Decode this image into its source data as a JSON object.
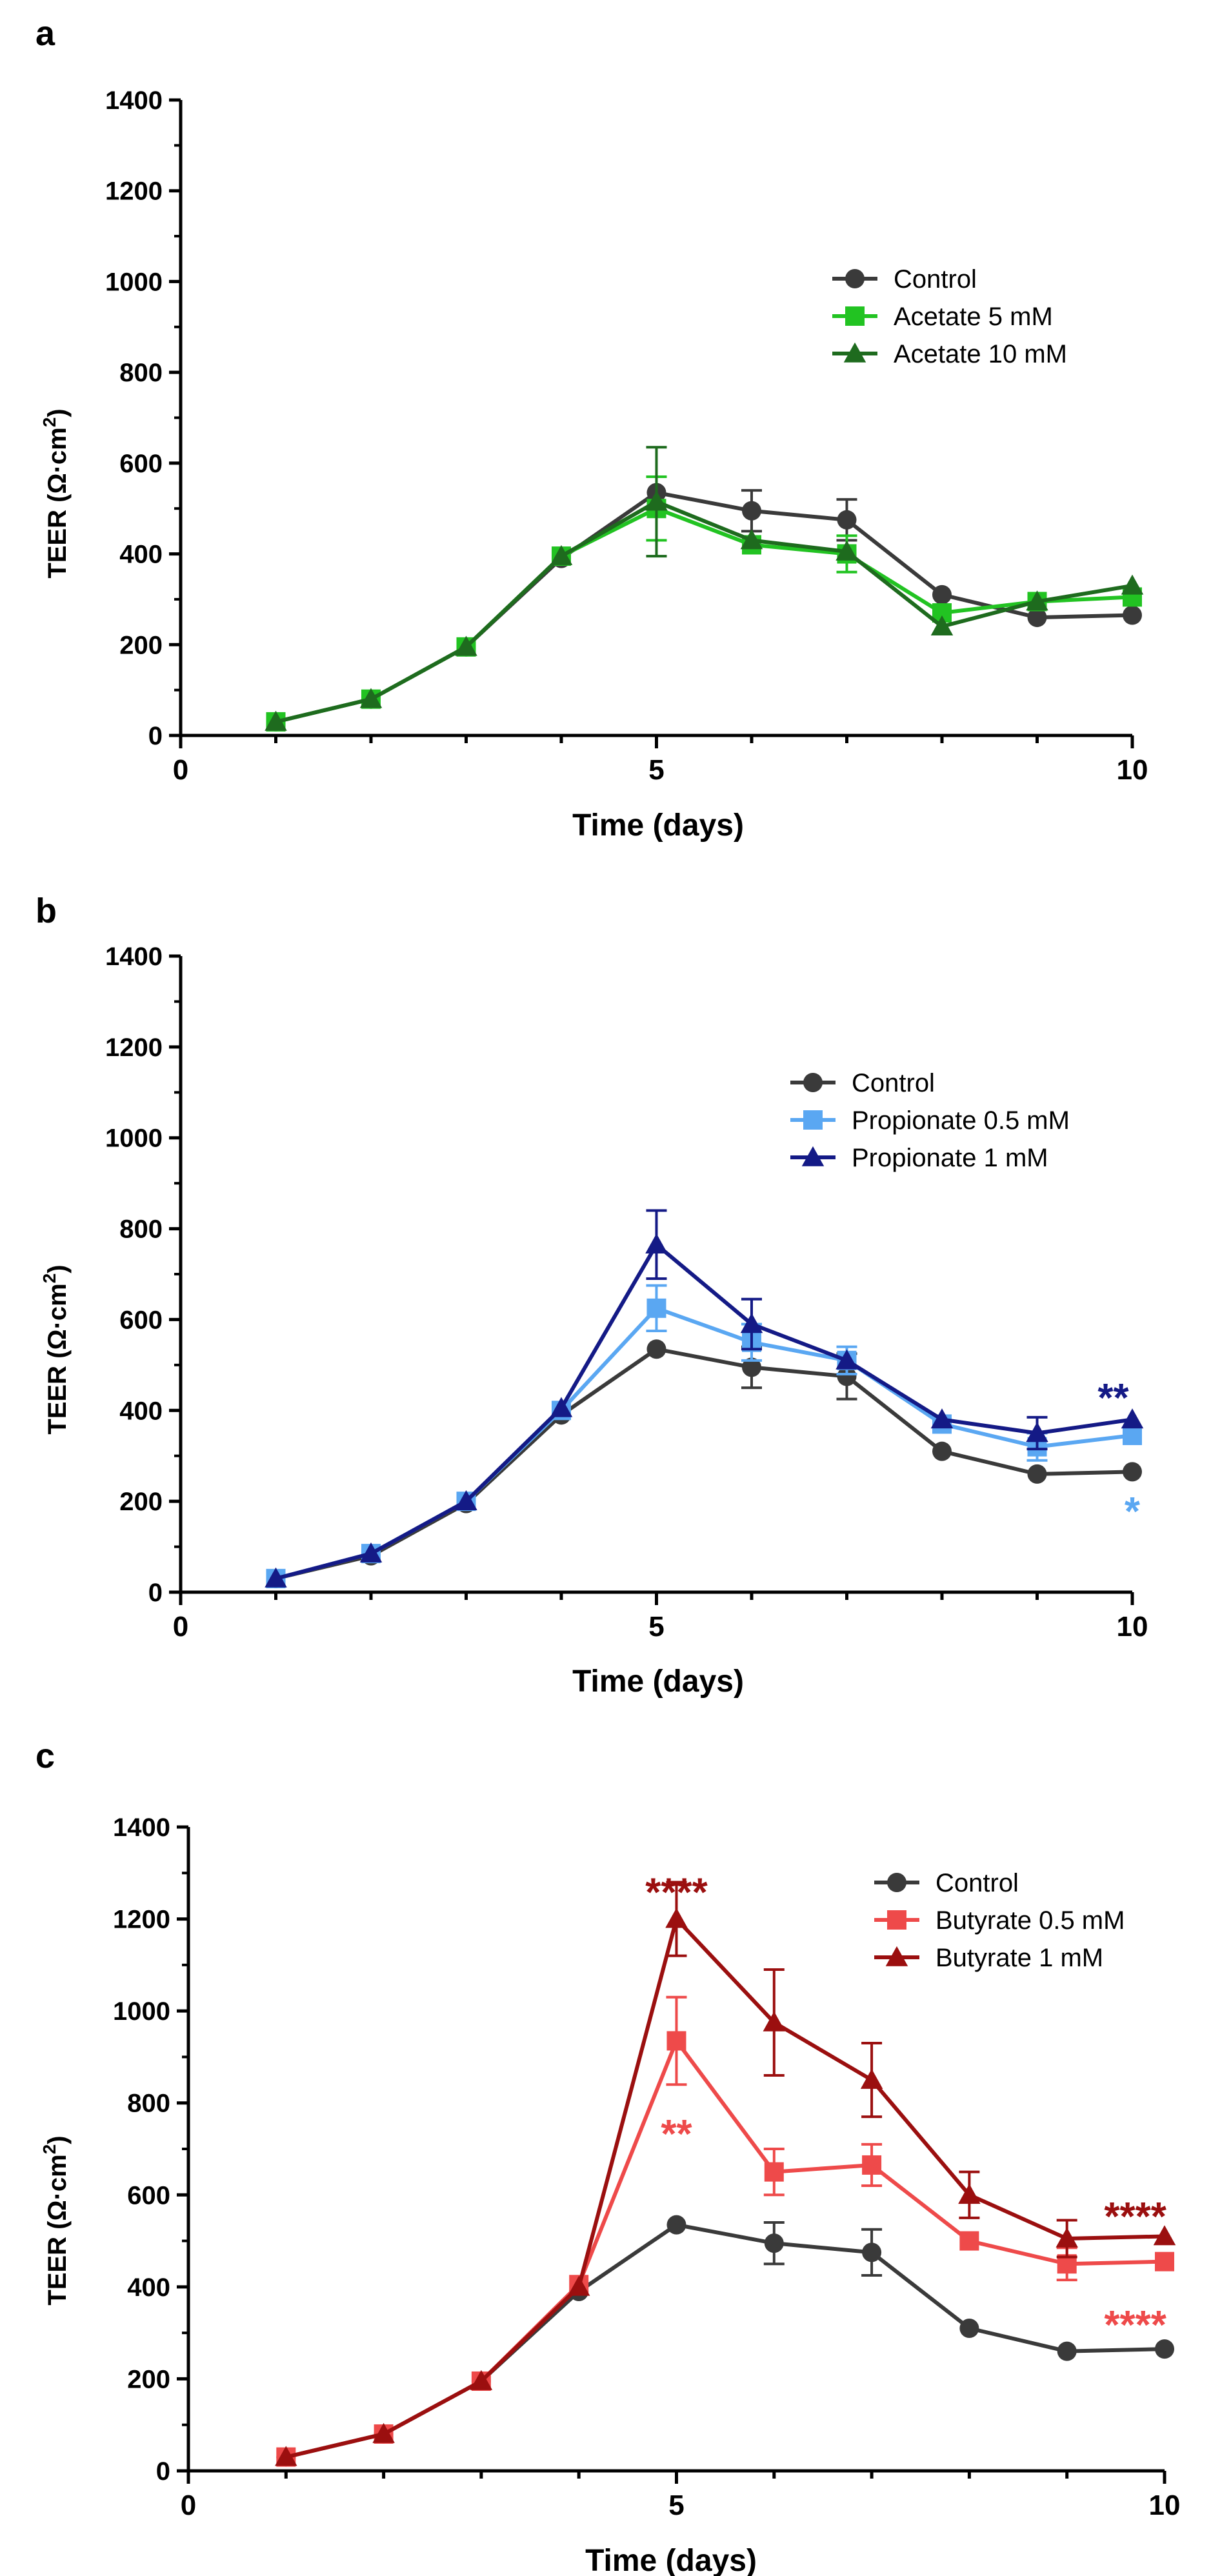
{
  "figure": {
    "colors": {
      "axis": "#000000",
      "control": "#3a3a3a"
    },
    "panels": [
      {
        "letter": "a",
        "ylabel_main": "TEER (Ω·cm",
        "ylabel_sup": "2",
        "ylabel_close": ")"
      },
      {
        "letter": "b",
        "ylabel_main": "TEER (Ω·cm",
        "ylabel_sup": "2",
        "ylabel_close": ")"
      },
      {
        "letter": "c",
        "ylabel_main": "TEER (Ω·cm",
        "ylabel_sup": "2",
        "ylabel_close": ")"
      }
    ]
  },
  "chart_data": [
    {
      "type": "line",
      "panel": "a",
      "xlabel": "Time (days)",
      "ylabel": "TEER (Ω·cm²)",
      "xlim": [
        0,
        10
      ],
      "ylim": [
        0,
        1400
      ],
      "xticks": [
        0,
        5,
        10
      ],
      "yticks": [
        0,
        200,
        400,
        600,
        800,
        1000,
        1200,
        1400
      ],
      "x": [
        1,
        2,
        3,
        4,
        5,
        6,
        7,
        8,
        9,
        10
      ],
      "legend_position": "top-right",
      "series": [
        {
          "name": "Control",
          "color": "#3a3a3a",
          "marker": "circle",
          "values": [
            30,
            80,
            195,
            390,
            535,
            495,
            475,
            310,
            260,
            265
          ],
          "errors": [
            0,
            0,
            0,
            0,
            0,
            45,
            45,
            0,
            0,
            0
          ]
        },
        {
          "name": "Acetate 5 mM",
          "color": "#22c322",
          "marker": "square",
          "values": [
            30,
            80,
            195,
            395,
            500,
            420,
            400,
            270,
            295,
            305
          ],
          "errors": [
            0,
            0,
            0,
            0,
            70,
            0,
            40,
            0,
            0,
            0
          ]
        },
        {
          "name": "Acetate 10 mM",
          "color": "#1e6b1e",
          "marker": "triangle",
          "values": [
            30,
            80,
            195,
            395,
            515,
            430,
            405,
            240,
            295,
            330
          ],
          "errors": [
            0,
            0,
            0,
            0,
            120,
            0,
            0,
            0,
            0,
            0
          ]
        }
      ],
      "annotations": []
    },
    {
      "type": "line",
      "panel": "b",
      "xlabel": "Time (days)",
      "ylabel": "TEER (Ω·cm²)",
      "xlim": [
        0,
        10
      ],
      "ylim": [
        0,
        1400
      ],
      "xticks": [
        0,
        5,
        10
      ],
      "yticks": [
        0,
        200,
        400,
        600,
        800,
        1000,
        1200,
        1400
      ],
      "x": [
        1,
        2,
        3,
        4,
        5,
        6,
        7,
        8,
        9,
        10
      ],
      "legend_position": "top-right",
      "series": [
        {
          "name": "Control",
          "color": "#3a3a3a",
          "marker": "circle",
          "values": [
            30,
            80,
            195,
            390,
            535,
            495,
            475,
            310,
            260,
            265
          ],
          "errors": [
            0,
            0,
            0,
            0,
            0,
            45,
            50,
            0,
            0,
            0
          ]
        },
        {
          "name": "Propionate 0.5 mM",
          "color": "#5aa7f2",
          "marker": "square",
          "values": [
            30,
            85,
            200,
            400,
            625,
            550,
            510,
            370,
            320,
            345
          ],
          "errors": [
            0,
            0,
            0,
            0,
            50,
            40,
            30,
            0,
            30,
            0
          ]
        },
        {
          "name": "Propionate 1 mM",
          "color": "#141a86",
          "marker": "triangle",
          "values": [
            30,
            85,
            200,
            405,
            765,
            590,
            510,
            380,
            350,
            380
          ],
          "errors": [
            0,
            0,
            0,
            0,
            75,
            55,
            0,
            0,
            35,
            0
          ]
        }
      ],
      "annotations": [
        {
          "text": "**",
          "x": 9.8,
          "y": 440,
          "color": "#141a86"
        },
        {
          "text": "*",
          "x": 10.0,
          "y": 190,
          "color": "#5aa7f2"
        }
      ]
    },
    {
      "type": "line",
      "panel": "c",
      "xlabel": "Time (days)",
      "ylabel": "TEER (Ω·cm²)",
      "xlim": [
        0,
        10
      ],
      "ylim": [
        0,
        1400
      ],
      "xticks": [
        0,
        5,
        10
      ],
      "yticks": [
        0,
        200,
        400,
        600,
        800,
        1000,
        1200,
        1400
      ],
      "x": [
        1,
        2,
        3,
        4,
        5,
        6,
        7,
        8,
        9,
        10
      ],
      "legend_position": "top-right",
      "series": [
        {
          "name": "Control",
          "color": "#3a3a3a",
          "marker": "circle",
          "values": [
            30,
            80,
            195,
            390,
            535,
            495,
            475,
            310,
            260,
            265
          ],
          "errors": [
            0,
            0,
            0,
            0,
            0,
            45,
            50,
            0,
            0,
            0
          ]
        },
        {
          "name": "Butyrate 0.5 mM",
          "color": "#ee4a4a",
          "marker": "square",
          "values": [
            30,
            80,
            195,
            405,
            935,
            650,
            665,
            500,
            450,
            455
          ],
          "errors": [
            0,
            0,
            0,
            0,
            95,
            50,
            45,
            0,
            35,
            0
          ]
        },
        {
          "name": "Butyrate 1 mM",
          "color": "#9b0f0f",
          "marker": "triangle",
          "values": [
            30,
            80,
            195,
            400,
            1200,
            975,
            850,
            600,
            505,
            510
          ],
          "errors": [
            0,
            0,
            0,
            0,
            80,
            115,
            80,
            50,
            40,
            0
          ]
        }
      ],
      "annotations": [
        {
          "text": "****",
          "x": 5.0,
          "y": 1270,
          "color": "#9b0f0f"
        },
        {
          "text": "**",
          "x": 5.0,
          "y": 745,
          "color": "#ee4a4a"
        },
        {
          "text": "****",
          "x": 9.7,
          "y": 565,
          "color": "#9b0f0f"
        },
        {
          "text": "****",
          "x": 9.7,
          "y": 330,
          "color": "#ee4a4a"
        }
      ]
    }
  ]
}
